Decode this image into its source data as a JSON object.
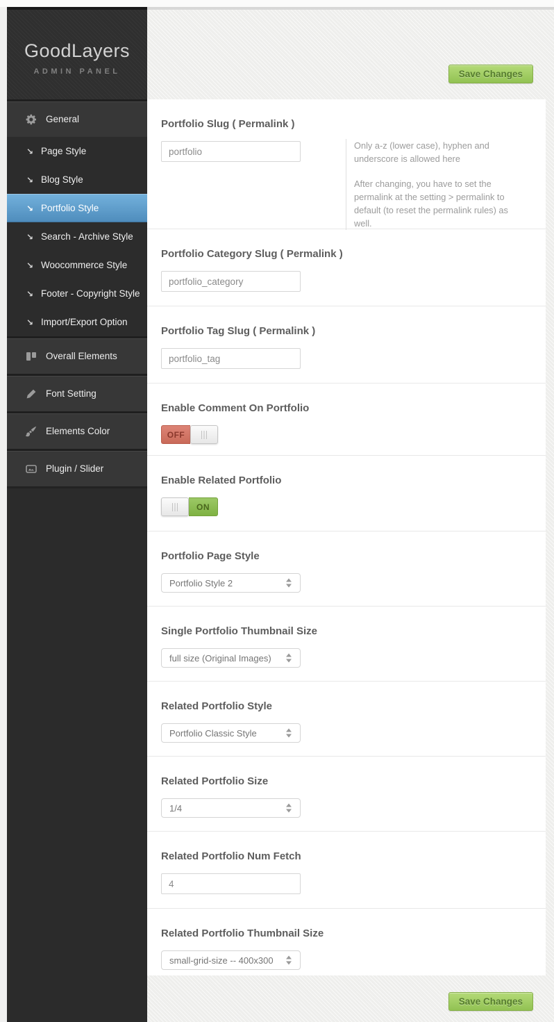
{
  "page": {
    "accent_blue": "#5e9dcc",
    "accent_green": "#a0cc61",
    "toggle_off_color": "#d0705f",
    "toggle_on_color": "#8bba52"
  },
  "sidebar": {
    "logo_title": "GoodLayers",
    "logo_subtitle": "ADMIN PANEL",
    "items": [
      {
        "id": "general",
        "label": "General",
        "icon": "gear",
        "level": "top",
        "active": false
      },
      {
        "id": "page-style",
        "label": "Page Style",
        "icon": "arrow-se",
        "level": "sub",
        "active": false
      },
      {
        "id": "blog-style",
        "label": "Blog Style",
        "icon": "arrow-se",
        "level": "sub",
        "active": false
      },
      {
        "id": "portfolio-style",
        "label": "Portfolio Style",
        "icon": "arrow-se",
        "level": "sub",
        "active": true
      },
      {
        "id": "search-archive-style",
        "label": "Search - Archive Style",
        "icon": "arrow-se",
        "level": "sub",
        "active": false
      },
      {
        "id": "woocommerce-style",
        "label": "Woocommerce Style",
        "icon": "arrow-se",
        "level": "sub",
        "active": false
      },
      {
        "id": "footer-copyright-style",
        "label": "Footer - Copyright Style",
        "icon": "arrow-se",
        "level": "sub",
        "active": false
      },
      {
        "id": "import-export-option",
        "label": "Import/Export Option",
        "icon": "arrow-se",
        "level": "sub",
        "active": false
      },
      {
        "id": "overall-elements",
        "label": "Overall Elements",
        "icon": "layout",
        "level": "top",
        "active": false
      },
      {
        "id": "font-setting",
        "label": "Font Setting",
        "icon": "pencil",
        "level": "top",
        "active": false
      },
      {
        "id": "elements-color",
        "label": "Elements Color",
        "icon": "brush",
        "level": "top",
        "active": false
      },
      {
        "id": "plugin-slider",
        "label": "Plugin / Slider",
        "icon": "slider",
        "level": "top",
        "active": false
      }
    ]
  },
  "toolbar": {
    "save_label": "Save Changes"
  },
  "sections": [
    {
      "id": "portfolio-slug",
      "label": "Portfolio Slug ( Permalink )",
      "control": "text",
      "value": "portfolio",
      "help": [
        "Only a-z (lower case), hyphen and underscore is allowed here",
        "After changing, you have to set the permalink at the setting > permalink to default (to reset the permalink rules) as well."
      ]
    },
    {
      "id": "portfolio-category-slug",
      "label": "Portfolio Category Slug ( Permalink )",
      "control": "text",
      "value": "portfolio_category"
    },
    {
      "id": "portfolio-tag-slug",
      "label": "Portfolio Tag Slug ( Permalink )",
      "control": "text",
      "value": "portfolio_tag"
    },
    {
      "id": "enable-comment-on-portfolio",
      "label": "Enable Comment On Portfolio",
      "control": "toggle",
      "value": "OFF"
    },
    {
      "id": "enable-related-portfolio",
      "label": "Enable Related Portfolio",
      "control": "toggle",
      "value": "ON"
    },
    {
      "id": "portfolio-page-style",
      "label": "Portfolio Page Style",
      "control": "select",
      "value": "Portfolio Style 2"
    },
    {
      "id": "single-portfolio-thumbnail-size",
      "label": "Single Portfolio Thumbnail Size",
      "control": "select",
      "value": "full size (Original Images)"
    },
    {
      "id": "related-portfolio-style",
      "label": "Related Portfolio Style",
      "control": "select",
      "value": "Portfolio Classic Style"
    },
    {
      "id": "related-portfolio-size",
      "label": "Related Portfolio Size",
      "control": "select",
      "value": "1/4"
    },
    {
      "id": "related-portfolio-num-fetch",
      "label": "Related Portfolio Num Fetch",
      "control": "text",
      "value": "4"
    },
    {
      "id": "related-portfolio-thumbnail-size",
      "label": "Related Portfolio Thumbnail Size",
      "control": "select",
      "value": "small-grid-size -- 400x300"
    }
  ]
}
